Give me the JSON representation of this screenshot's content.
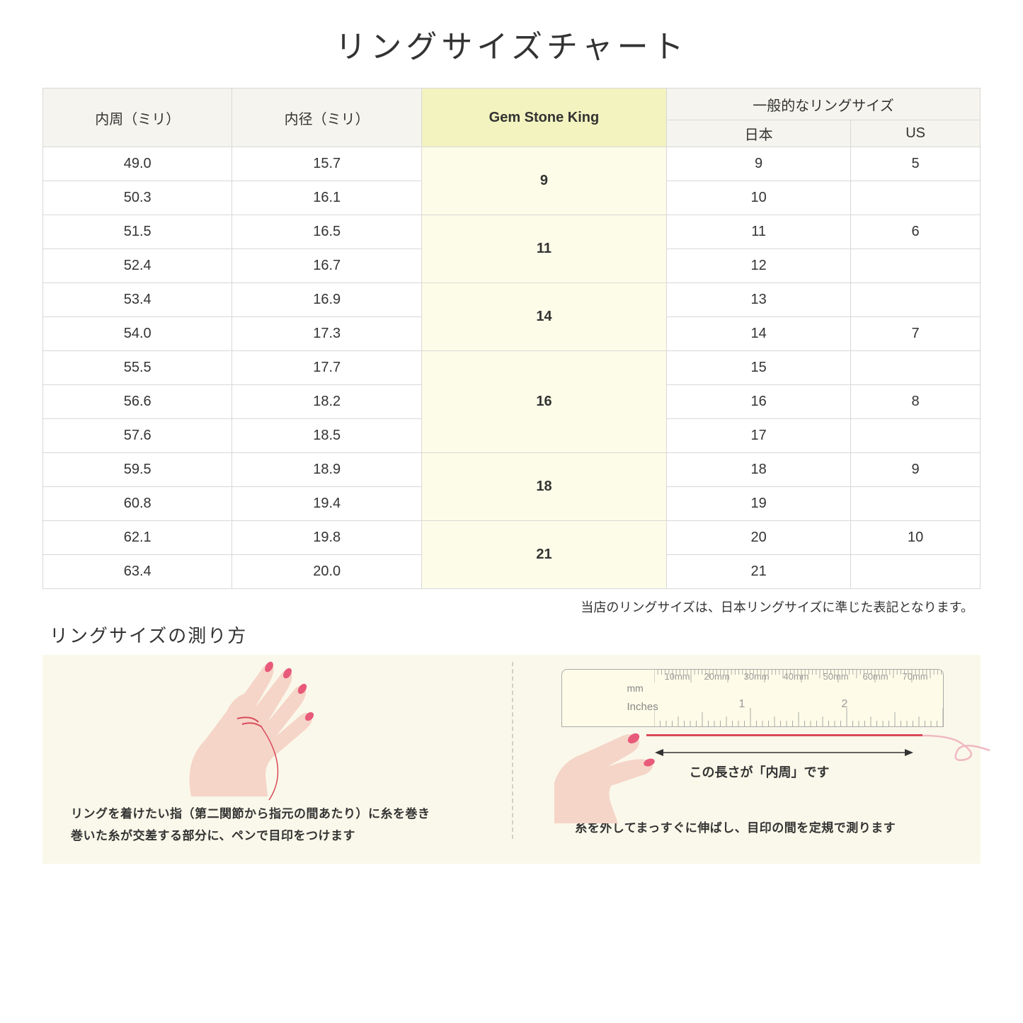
{
  "title": "リングサイズチャート",
  "headers": {
    "circumference": "内周（ミリ）",
    "diameter": "内径（ミリ）",
    "gsk": "Gem Stone King",
    "general": "一般的なリングサイズ",
    "japan": "日本",
    "us": "US"
  },
  "groups": [
    {
      "gsk": "9",
      "rows": [
        {
          "c": "49.0",
          "d": "15.7",
          "jp": "9",
          "us": "5"
        },
        {
          "c": "50.3",
          "d": "16.1",
          "jp": "10",
          "us": ""
        }
      ]
    },
    {
      "gsk": "11",
      "rows": [
        {
          "c": "51.5",
          "d": "16.5",
          "jp": "11",
          "us": "6"
        },
        {
          "c": "52.4",
          "d": "16.7",
          "jp": "12",
          "us": ""
        }
      ]
    },
    {
      "gsk": "14",
      "rows": [
        {
          "c": "53.4",
          "d": "16.9",
          "jp": "13",
          "us": ""
        },
        {
          "c": "54.0",
          "d": "17.3",
          "jp": "14",
          "us": "7"
        }
      ]
    },
    {
      "gsk": "16",
      "rows": [
        {
          "c": "55.5",
          "d": "17.7",
          "jp": "15",
          "us": ""
        },
        {
          "c": "56.6",
          "d": "18.2",
          "jp": "16",
          "us": "8"
        },
        {
          "c": "57.6",
          "d": "18.5",
          "jp": "17",
          "us": ""
        }
      ]
    },
    {
      "gsk": "18",
      "rows": [
        {
          "c": "59.5",
          "d": "18.9",
          "jp": "18",
          "us": "9"
        },
        {
          "c": "60.8",
          "d": "19.4",
          "jp": "19",
          "us": ""
        }
      ]
    },
    {
      "gsk": "21",
      "rows": [
        {
          "c": "62.1",
          "d": "19.8",
          "jp": "20",
          "us": "10"
        },
        {
          "c": "63.4",
          "d": "20.0",
          "jp": "21",
          "us": ""
        }
      ]
    }
  ],
  "note": "当店のリングサイズは、日本リングサイズに準じた表記となります。",
  "measure_title": "リングサイズの測り方",
  "step1_line1": "リングを着けたい指（第二関節から指元の間あたり）に糸を巻き",
  "step1_line2": "巻いた糸が交差する部分に、ペンで目印をつけます",
  "step2_arrow": "この長さが「内周」です",
  "step2_text": "糸を外してまっすぐに伸ばし、目印の間を定規で測ります",
  "ruler_mm": "mm",
  "ruler_in": "Inches",
  "ruler_mm_marks": [
    "10mm",
    "20mm",
    "30mm",
    "40mm",
    "50mm",
    "60mm",
    "70mm"
  ],
  "ruler_in_marks": [
    "1",
    "2"
  ],
  "colors": {
    "header_bg": "#f5f4ee",
    "highlight_bg": "#f3f3c0",
    "gsk_col_bg": "#fcfce8",
    "border": "#d8d8d8",
    "measure_bg": "#faf8ea",
    "skin": "#f5d5c8",
    "skin_dark": "#eab9a8",
    "nail": "#e85a7a",
    "thread": "#d94a5a"
  }
}
